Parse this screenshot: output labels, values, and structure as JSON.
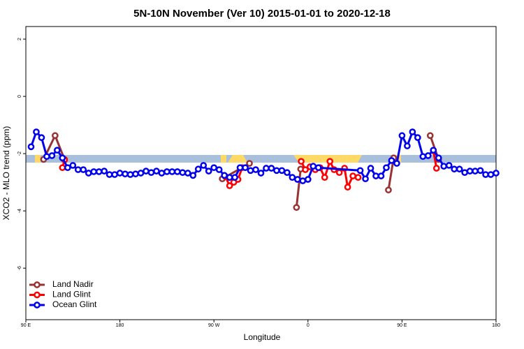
{
  "chart_data": {
    "type": "line",
    "title": "5N-10N November (Ver 10)   2015-01-01 to 2020-12-18",
    "x_label": "Longitude",
    "y_label": "XCO2 - MLO trend (ppm)",
    "xlim": [
      90,
      540
    ],
    "xticks": [
      {
        "value": 90,
        "label": "90 E"
      },
      {
        "value": 180,
        "label": "180"
      },
      {
        "value": 270,
        "label": "90 W"
      },
      {
        "value": 360,
        "label": "0"
      },
      {
        "value": 450,
        "label": "90 E"
      },
      {
        "value": 540,
        "label": "180"
      }
    ],
    "ylim": [
      -7.8,
      2.44
    ],
    "yticks": [
      2,
      0,
      -2,
      -4,
      -6
    ],
    "legend": "bottom-left",
    "series": [
      {
        "name": "Land Nadir",
        "color": "#993333",
        "x": [
          107,
          118,
          127,
          200,
          278,
          304,
          320,
          349,
          353,
          400,
          437,
          442,
          460,
          477,
          485
        ],
        "values": [
          -2.2,
          -1.37,
          -2.2,
          null,
          -2.88,
          -2.34,
          null,
          -3.88,
          -2.54,
          null,
          -3.27,
          -2.15,
          null,
          -1.37,
          -2.2
        ]
      },
      {
        "name": "Land Glint",
        "color": "#ff0000",
        "x": [
          125,
          127,
          200,
          281,
          285,
          289,
          293,
          297,
          320,
          353.5,
          357.5,
          362,
          367,
          371.5,
          376,
          381,
          385,
          390,
          395,
          398,
          403,
          408,
          460,
          480,
          483
        ],
        "values": [
          -2.49,
          -2.22,
          null,
          -2.8,
          -3.12,
          -3.0,
          -2.9,
          -2.49,
          null,
          -2.27,
          -2.56,
          -2.46,
          -2.56,
          -2.49,
          -2.83,
          -2.27,
          -2.56,
          -2.66,
          -2.51,
          -3.17,
          -2.78,
          -2.83,
          null,
          -1.9,
          -2.51
        ]
      },
      {
        "name": "Ocean Glint",
        "color": "#0000ee",
        "x": [
          95,
          100,
          105,
          110,
          115,
          120,
          125,
          130,
          135,
          140,
          145,
          150,
          155,
          160,
          165,
          170,
          175,
          180,
          185,
          190,
          195,
          200,
          205,
          210,
          215,
          220,
          225,
          230,
          235,
          240,
          245,
          250,
          255,
          260,
          265,
          270,
          275,
          280,
          285,
          290,
          295,
          300,
          305,
          310,
          315,
          320,
          325,
          330,
          335,
          340,
          345,
          350,
          355,
          360,
          365,
          370,
          410,
          415,
          420,
          425,
          430,
          435,
          440,
          445,
          450,
          455,
          460,
          465,
          470,
          475,
          480,
          485,
          490,
          495,
          500,
          505,
          510,
          515,
          520,
          525,
          530,
          535,
          540
        ],
        "values": [
          -1.76,
          -1.24,
          -1.44,
          -2.1,
          -2.07,
          -1.88,
          -2.15,
          -2.49,
          -2.41,
          -2.56,
          -2.56,
          -2.68,
          -2.63,
          -2.63,
          -2.61,
          -2.73,
          -2.73,
          -2.68,
          -2.71,
          -2.73,
          -2.71,
          -2.68,
          -2.61,
          -2.66,
          -2.61,
          -2.68,
          -2.63,
          -2.63,
          -2.63,
          -2.66,
          -2.68,
          -2.76,
          -2.54,
          -2.41,
          -2.61,
          -2.49,
          -2.56,
          -2.76,
          -2.83,
          -2.83,
          -2.49,
          -2.49,
          -2.59,
          -2.56,
          -2.68,
          -2.51,
          -2.51,
          -2.59,
          -2.59,
          -2.66,
          -2.83,
          -2.9,
          -2.95,
          -2.9,
          -2.44,
          -2.49,
          -2.59,
          -2.88,
          -2.51,
          -2.78,
          -2.78,
          -2.49,
          -2.24,
          -2.34,
          -1.37,
          -1.73,
          -1.24,
          -1.44,
          -2.1,
          -2.07,
          -1.88,
          -2.15,
          -2.44,
          -2.41,
          -2.54,
          -2.54,
          -2.66,
          -2.61,
          -2.61,
          -2.59,
          -2.73,
          -2.73,
          -2.68
        ]
      }
    ]
  }
}
